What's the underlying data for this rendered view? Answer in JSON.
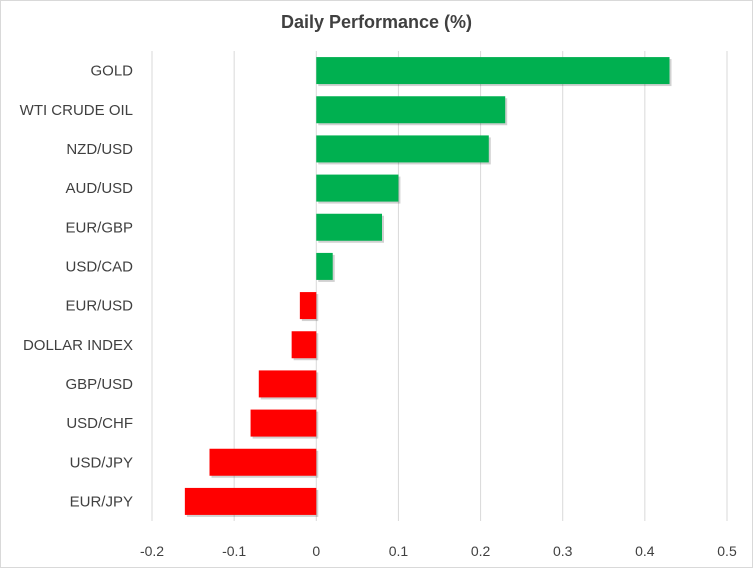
{
  "chart_data": {
    "type": "bar",
    "orientation": "horizontal",
    "title": "Daily Performance (%)",
    "xlabel": "",
    "ylabel": "",
    "categories": [
      "GOLD",
      "WTI CRUDE OIL",
      "NZD/USD",
      "AUD/USD",
      "EUR/GBP",
      "USD/CAD",
      "EUR/USD",
      "DOLLAR INDEX",
      "GBP/USD",
      "USD/CHF",
      "USD/JPY",
      "EUR/JPY"
    ],
    "values": [
      0.43,
      0.23,
      0.21,
      0.1,
      0.08,
      0.02,
      -0.02,
      -0.03,
      -0.07,
      -0.08,
      -0.13,
      -0.16
    ],
    "xlim": [
      -0.2,
      0.5
    ],
    "xticks": [
      "-0.2",
      "-0.1",
      "0",
      "0.1",
      "0.2",
      "0.3",
      "0.4",
      "0.5"
    ],
    "grid": true,
    "legend": "none",
    "colors": {
      "positive": "#00b050",
      "negative": "#ff0000",
      "grid": "#d9d9d9",
      "text": "#404040"
    }
  }
}
